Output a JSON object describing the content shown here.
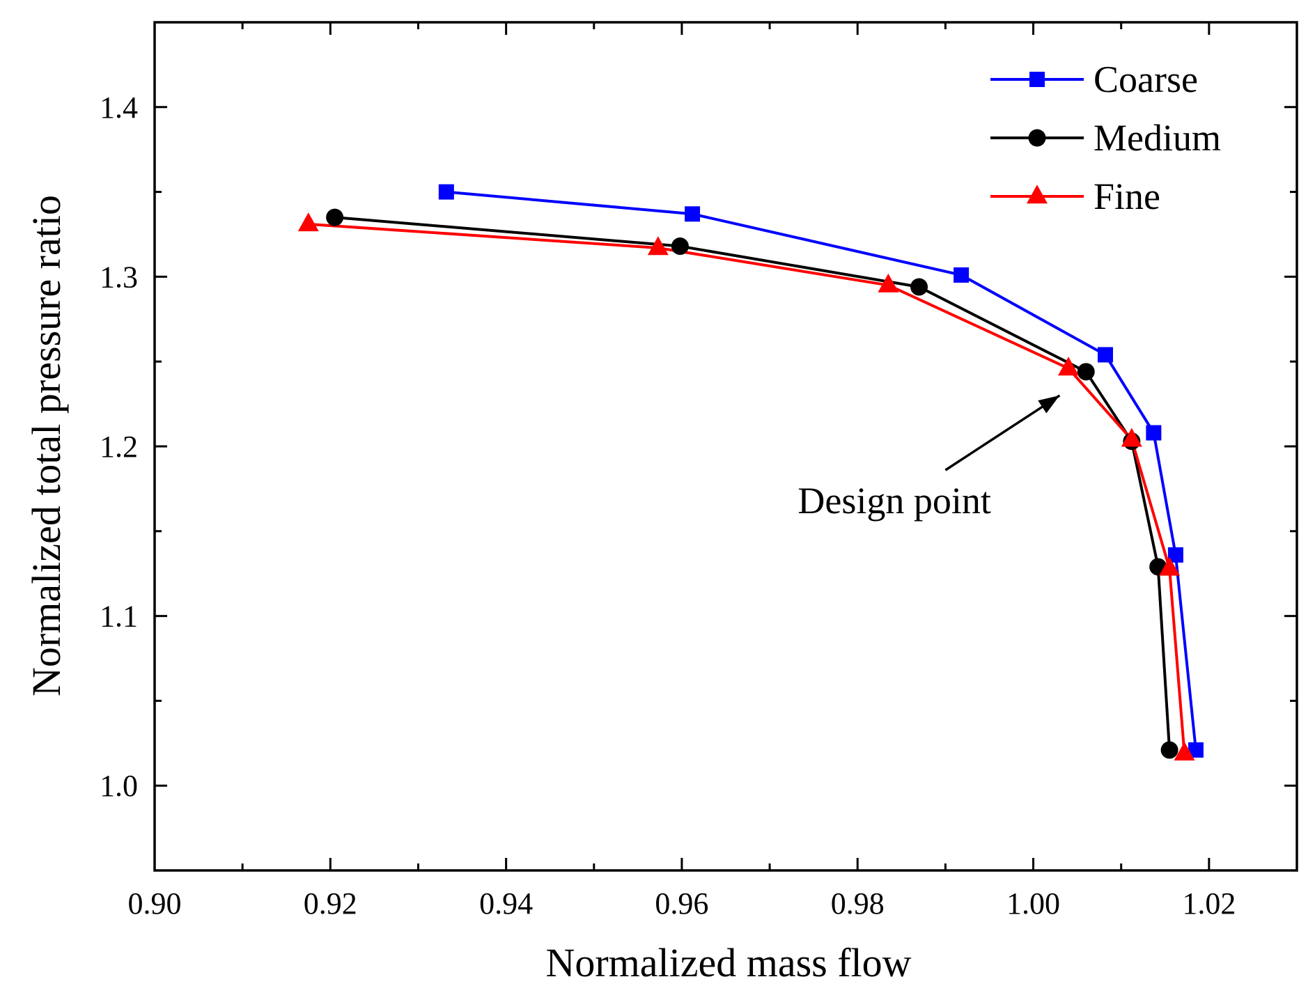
{
  "chart_data": {
    "type": "line",
    "title": "",
    "xlabel": "Normalized mass flow",
    "ylabel": "Normalized total pressure ratio",
    "xlim": [
      0.9,
      1.03
    ],
    "ylim": [
      0.95,
      1.45
    ],
    "x_ticks": [
      "0.90",
      "0.92",
      "0.94",
      "0.96",
      "0.98",
      "1.00",
      "1.02"
    ],
    "x_tick_values": [
      0.9,
      0.92,
      0.94,
      0.96,
      0.98,
      1.0,
      1.02
    ],
    "y_ticks": [
      "1.0",
      "1.1",
      "1.2",
      "1.3",
      "1.4"
    ],
    "y_tick_values": [
      1.0,
      1.1,
      1.2,
      1.3,
      1.4
    ],
    "grid": false,
    "legend_position": "top-right",
    "series": [
      {
        "name": "Coarse",
        "color": "#0000ff",
        "marker": "square",
        "x": [
          0.9332,
          0.9612,
          0.9918,
          1.0082,
          1.0137,
          1.0162,
          1.0185
        ],
        "y": [
          1.35,
          1.337,
          1.301,
          1.254,
          1.208,
          1.136,
          1.021
        ]
      },
      {
        "name": "Medium",
        "color": "#000000",
        "marker": "circle",
        "x": [
          0.9205,
          0.9598,
          0.987,
          1.006,
          1.0112,
          1.0142,
          1.0155
        ],
        "y": [
          1.335,
          1.318,
          1.294,
          1.244,
          1.203,
          1.129,
          1.021
        ]
      },
      {
        "name": "Fine",
        "color": "#ff0000",
        "marker": "triangle",
        "x": [
          0.9175,
          0.9573,
          0.9835,
          1.004,
          1.0112,
          1.0155,
          1.0172
        ],
        "y": [
          1.331,
          1.317,
          1.295,
          1.246,
          1.204,
          1.128,
          1.019
        ]
      }
    ],
    "annotations": [
      {
        "text": "Design point",
        "arrow_to": {
          "x": 1.003,
          "y": 1.23
        },
        "arrow_from": {
          "x": 0.99,
          "y": 1.186
        }
      }
    ]
  }
}
